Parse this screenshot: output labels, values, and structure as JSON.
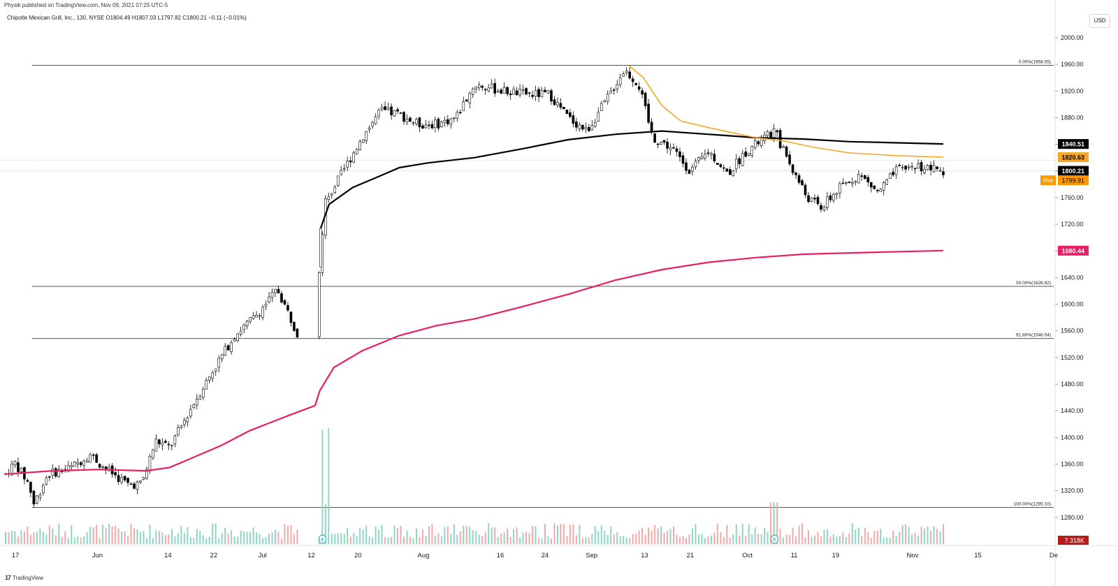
{
  "header": {
    "published": "Physik published on TradingView.com, Nov 09, 2021 07:25 UTC-5",
    "symbol_line": "Chipotle Mexican Grill, Inc., 130, NYSE  O1804.49  H1807.03  L1797.82  C1800.21  −0.11 (−0.01%)"
  },
  "currency": "USD",
  "footer": {
    "logo_text": "TradingView",
    "logo_mark": "17"
  },
  "chart_data": {
    "type": "candlestick",
    "ylim": [
      1240,
      2040
    ],
    "y_ticks": [
      "2000.00",
      "1960.00",
      "1920.00",
      "1880.00",
      "1840.00",
      "1800.00",
      "1760.00",
      "1720.00",
      "1680.00",
      "1640.00",
      "1600.00",
      "1560.00",
      "1520.00",
      "1480.00",
      "1440.00",
      "1400.00",
      "1360.00",
      "1320.00",
      "1280.00"
    ],
    "y_tick_values": [
      2000,
      1960,
      1920,
      1880,
      1840,
      1800,
      1760,
      1720,
      1680,
      1640,
      1600,
      1560,
      1520,
      1480,
      1440,
      1400,
      1360,
      1320,
      1280
    ],
    "x_ticks": [
      {
        "label": "17",
        "t": 0.0
      },
      {
        "label": "Jun",
        "t": 0.079
      },
      {
        "label": "14",
        "t": 0.147
      },
      {
        "label": "22",
        "t": 0.191
      },
      {
        "label": "Jul",
        "t": 0.238
      },
      {
        "label": "12",
        "t": 0.285
      },
      {
        "label": "20",
        "t": 0.33
      },
      {
        "label": "Aug",
        "t": 0.393
      },
      {
        "label": "16",
        "t": 0.467
      },
      {
        "label": "24",
        "t": 0.51
      },
      {
        "label": "Sep",
        "t": 0.555
      },
      {
        "label": "13",
        "t": 0.606
      },
      {
        "label": "21",
        "t": 0.65
      },
      {
        "label": "Oct",
        "t": 0.705
      },
      {
        "label": "11",
        "t": 0.75
      },
      {
        "label": "19",
        "t": 0.79
      },
      {
        "label": "Nov",
        "t": 0.864
      },
      {
        "label": "15",
        "t": 0.927
      },
      {
        "label": "De",
        "t": 1.0
      }
    ],
    "fib_levels": [
      {
        "label": "0.00%(1958.55)",
        "value": 1958.55
      },
      {
        "label": "50.00%(1626.82)",
        "value": 1626.82
      },
      {
        "label": "61.80%(1548.54)",
        "value": 1548.54
      },
      {
        "label": "100.00%(1295.10)",
        "value": 1295.1
      }
    ],
    "price_anchors": [
      [
        0.0,
        1345
      ],
      [
        0.01,
        1362
      ],
      [
        0.025,
        1330
      ],
      [
        0.03,
        1300
      ],
      [
        0.045,
        1345
      ],
      [
        0.07,
        1355
      ],
      [
        0.09,
        1375
      ],
      [
        0.105,
        1355
      ],
      [
        0.13,
        1330
      ],
      [
        0.145,
        1330
      ],
      [
        0.16,
        1395
      ],
      [
        0.175,
        1385
      ],
      [
        0.2,
        1450
      ],
      [
        0.225,
        1510
      ],
      [
        0.245,
        1555
      ],
      [
        0.265,
        1580
      ],
      [
        0.29,
        1622
      ],
      [
        0.31,
        1560
      ],
      [
        0.32,
        1535
      ],
      [
        0.33,
        1575
      ],
      [
        0.34,
        1750
      ],
      [
        0.36,
        1800
      ],
      [
        0.38,
        1850
      ],
      [
        0.4,
        1890
      ],
      [
        0.42,
        1885
      ],
      [
        0.44,
        1870
      ],
      [
        0.46,
        1870
      ],
      [
        0.48,
        1880
      ],
      [
        0.5,
        1930
      ],
      [
        0.53,
        1920
      ],
      [
        0.56,
        1915
      ],
      [
        0.58,
        1915
      ],
      [
        0.6,
        1880
      ],
      [
        0.62,
        1860
      ],
      [
        0.64,
        1905
      ],
      [
        0.66,
        1952
      ],
      [
        0.675,
        1930
      ],
      [
        0.69,
        1850
      ],
      [
        0.71,
        1835
      ],
      [
        0.73,
        1800
      ],
      [
        0.75,
        1830
      ],
      [
        0.77,
        1795
      ],
      [
        0.79,
        1830
      ],
      [
        0.82,
        1860
      ],
      [
        0.84,
        1800
      ],
      [
        0.855,
        1760
      ],
      [
        0.87,
        1745
      ],
      [
        0.89,
        1775
      ],
      [
        0.91,
        1795
      ],
      [
        0.93,
        1768
      ],
      [
        0.95,
        1800
      ],
      [
        0.97,
        1808
      ],
      [
        1.0,
        1800
      ]
    ],
    "gap_days": [
      0.334,
      0.336,
      0.338
    ],
    "series": [
      {
        "name": "",
        "type": "vwap-black",
        "color": "#000000",
        "points": [
          [
            0.336,
            1714
          ],
          [
            0.345,
            1750
          ],
          [
            0.37,
            1775
          ],
          [
            0.4,
            1793
          ],
          [
            0.42,
            1805
          ],
          [
            0.45,
            1812
          ],
          [
            0.5,
            1820
          ],
          [
            0.55,
            1833
          ],
          [
            0.6,
            1847
          ],
          [
            0.65,
            1855
          ],
          [
            0.7,
            1860
          ],
          [
            0.75,
            1855
          ],
          [
            0.8,
            1850
          ],
          [
            0.85,
            1848
          ],
          [
            0.9,
            1844
          ],
          [
            1.0,
            1840.51
          ]
        ],
        "last_value": "1840.51"
      },
      {
        "name": "",
        "type": "vwap-orange",
        "color": "#f5a623",
        "points": [
          [
            0.665,
            1958
          ],
          [
            0.68,
            1940
          ],
          [
            0.7,
            1898
          ],
          [
            0.72,
            1875
          ],
          [
            0.75,
            1865
          ],
          [
            0.8,
            1850
          ],
          [
            0.83,
            1845
          ],
          [
            0.86,
            1836
          ],
          [
            0.9,
            1827
          ],
          [
            0.95,
            1823
          ],
          [
            1.0,
            1820.63
          ]
        ],
        "last_value": "1820.63"
      },
      {
        "name": "",
        "type": "vwap-red",
        "color": "#e91e63",
        "points": [
          [
            0.0,
            1345
          ],
          [
            0.05,
            1350
          ],
          [
            0.1,
            1352
          ],
          [
            0.15,
            1350
          ],
          [
            0.175,
            1355
          ],
          [
            0.2,
            1370
          ],
          [
            0.23,
            1388
          ],
          [
            0.26,
            1410
          ],
          [
            0.3,
            1432
          ],
          [
            0.33,
            1448
          ],
          [
            0.335,
            1470
          ],
          [
            0.35,
            1505
          ],
          [
            0.38,
            1530
          ],
          [
            0.42,
            1553
          ],
          [
            0.46,
            1568
          ],
          [
            0.5,
            1578
          ],
          [
            0.55,
            1596
          ],
          [
            0.6,
            1615
          ],
          [
            0.65,
            1636
          ],
          [
            0.7,
            1652
          ],
          [
            0.75,
            1663
          ],
          [
            0.8,
            1670
          ],
          [
            0.85,
            1675
          ],
          [
            0.9,
            1677
          ],
          [
            1.0,
            1680.44
          ]
        ],
        "last_value": "1680.44"
      }
    ],
    "price_labels": {
      "close": "1800.21",
      "pre_tag": "Pre",
      "pre": "1799.91",
      "volume": "7.318K"
    },
    "earnings_markers": [
      {
        "label": "E",
        "t": 0.338
      },
      {
        "label": "E",
        "t": 0.82
      }
    ]
  },
  "colors": {
    "grid_line": "#555555",
    "up_candle": "#ffffff",
    "down_candle": "#000000",
    "candle_border": "#000000",
    "close_line": "#90b4e8",
    "pre_line": "#f5b0b0",
    "earnings": "#26a69a",
    "volume_up": "#8fd5c5",
    "volume_down": "#f4a8a8",
    "label_black_bg": "#000000",
    "label_orange_bg": "#f5a623",
    "label_red_bg": "#e91e63",
    "label_pre_bg": "#ff9800",
    "label_volume_bg": "#b71c1c"
  }
}
